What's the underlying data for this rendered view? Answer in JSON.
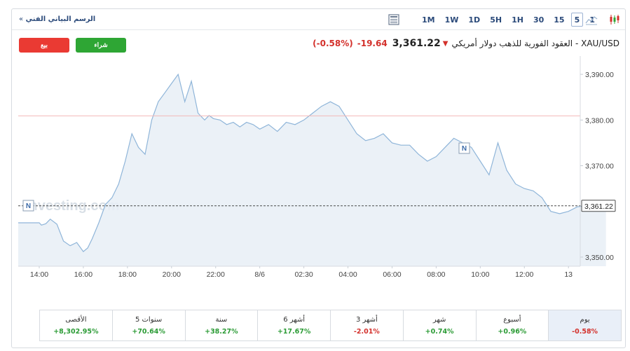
{
  "header": {
    "breadcrumb": "الرسم البياني الفني",
    "breadcrumb_arrow": "»",
    "timeframes": [
      "1M",
      "1W",
      "1D",
      "5H",
      "1H",
      "30",
      "15",
      "5",
      "1"
    ],
    "active_timeframe": "5"
  },
  "actions": {
    "sell_label": "بيع",
    "buy_label": "شراء"
  },
  "quote": {
    "symbol_name": "XAU/USD - العقود الفورية للذهب دولار أمريكي",
    "price": "3,361.22",
    "change": "-19.64",
    "change_pct": "(-0.58%)",
    "direction": "down"
  },
  "watermark": "Investing.com",
  "chart_data": {
    "type": "area",
    "x_ticks": [
      "14:00",
      "16:00",
      "18:00",
      "20:00",
      "22:00",
      "8/6",
      "02:30",
      "04:00",
      "06:00",
      "08:00",
      "10:00",
      "12:00",
      "13"
    ],
    "y_ticks": [
      "3,390.00",
      "3,380.00",
      "3,370.00",
      "3,350.00"
    ],
    "ylim": [
      3348,
      3394
    ],
    "reference_line": 3380.9,
    "last_price_label": "3,361.22",
    "last_price": 3361.22,
    "x": [
      0,
      0.05,
      0.15,
      0.25,
      0.4,
      0.55,
      0.7,
      0.85,
      1.0,
      1.1,
      1.2,
      1.35,
      1.5,
      1.65,
      1.8,
      1.95,
      2.1,
      2.25,
      2.4,
      2.55,
      2.7,
      2.85,
      3.0,
      3.15,
      3.3,
      3.45,
      3.6,
      3.75,
      3.85,
      3.95,
      4.1,
      4.25,
      4.4,
      4.55,
      4.7,
      4.85,
      5.0,
      5.2,
      5.4,
      5.6,
      5.8,
      6.0,
      6.2,
      6.4,
      6.6,
      6.8,
      7.0,
      7.2,
      7.4,
      7.6,
      7.8,
      8.0,
      8.2,
      8.4,
      8.6,
      8.8,
      9.0,
      9.2,
      9.4,
      9.6,
      9.8,
      10.0,
      10.2,
      10.4,
      10.6,
      10.8,
      11.0,
      11.2,
      11.4,
      11.6,
      11.8,
      12.0,
      12.2,
      12.4,
      12.55,
      12.7,
      12.85
    ],
    "values": [
      3357.5,
      3357,
      3357.3,
      3358.3,
      3357.2,
      3353.5,
      3352.5,
      3353.2,
      3351.2,
      3352,
      3354,
      3357.5,
      3361.5,
      3363,
      3366,
      3371,
      3377,
      3374,
      3372.5,
      3380,
      3384,
      3386,
      3388,
      3390,
      3384,
      3388.5,
      3381.5,
      3380,
      3381,
      3380.3,
      3380,
      3379,
      3379.5,
      3378.5,
      3379.5,
      3379,
      3378,
      3379,
      3377.5,
      3379.5,
      3379,
      3380,
      3381.5,
      3383,
      3384,
      3383,
      3380,
      3377,
      3375.5,
      3376,
      3377,
      3375,
      3374.5,
      3374.5,
      3372.5,
      3371,
      3372,
      3374,
      3376,
      3375,
      3374,
      3371,
      3368,
      3375,
      3369,
      3366,
      3365,
      3364.5,
      3363,
      3360,
      3359.5,
      3360,
      3361,
      3361.22,
      3361,
      3360.5,
      3361.22
    ]
  },
  "performance": [
    {
      "label": "الأقصى",
      "value": "+8,302.95%",
      "sign": "pos"
    },
    {
      "label": "5 سنوات",
      "value": "+70.64%",
      "sign": "pos"
    },
    {
      "label": "سنة",
      "value": "+38.27%",
      "sign": "pos"
    },
    {
      "label": "6 أشهر",
      "value": "+17.67%",
      "sign": "pos"
    },
    {
      "label": "3 أشهر",
      "value": "-2.01%",
      "sign": "neg"
    },
    {
      "label": "شهر",
      "value": "+0.74%",
      "sign": "pos"
    },
    {
      "label": "أسبوع",
      "value": "+0.96%",
      "sign": "pos"
    },
    {
      "label": "يوم",
      "value": "-0.58%",
      "sign": "neg"
    }
  ],
  "colors": {
    "line": "#8fb5d9",
    "fill": "#e7eef6",
    "reference": "#f2b8b8",
    "positive": "#2b9b35",
    "negative": "#d3302b"
  }
}
